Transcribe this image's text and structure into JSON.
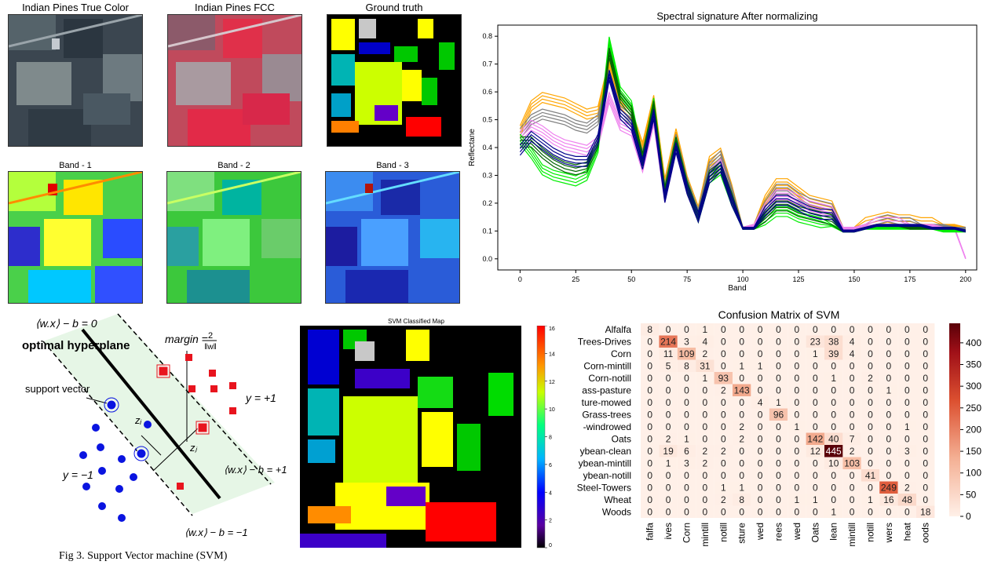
{
  "panels": {
    "true_color": {
      "title": "Indian Pines True Color"
    },
    "fcc": {
      "title": "Indian Pines FCC"
    },
    "ground_truth": {
      "title": "Ground truth"
    },
    "band1": {
      "title": "Band - 1"
    },
    "band2": {
      "title": "Band - 2"
    },
    "band3": {
      "title": "Band - 3"
    },
    "svm_map": {
      "title": "SVM Classified Map",
      "colorbar_ticks": [
        0,
        2,
        4,
        6,
        8,
        10,
        12,
        14,
        16
      ]
    }
  },
  "svm_diagram": {
    "eq_top": "⟨w.x⟩ − b = 0",
    "optimal": "optimal hyperplane",
    "margin": "margin =",
    "margin_num": "2",
    "margin_den": "‖w‖",
    "support_vector": "support vector",
    "y_pos": "y = +1",
    "y_neg": "y = −1",
    "zi": "zᵢ",
    "zj": "zⱼ",
    "eq_plus": "⟨w.x⟩ − b = +1",
    "eq_minus": "⟨w.x⟩ − b = −1",
    "caption": "Fig 3. Support Vector machine (SVM)"
  },
  "chart_data": [
    {
      "type": "line",
      "title": "Spectral signature After normalizing",
      "xlabel": "Band",
      "ylabel": "Reflectane",
      "xlim": [
        -10,
        205
      ],
      "ylim": [
        -0.04,
        0.84
      ],
      "xticks": [
        0,
        25,
        50,
        75,
        100,
        125,
        150,
        175,
        200
      ],
      "yticks": [
        0.0,
        0.1,
        0.2,
        0.3,
        0.4,
        0.5,
        0.6,
        0.7,
        0.8
      ],
      "grid": false,
      "series": [
        {
          "color": "#ffa500",
          "x": [
            0,
            5,
            10,
            15,
            20,
            25,
            30,
            35,
            40,
            45,
            50,
            55,
            60,
            65,
            70,
            75,
            80,
            85,
            90,
            95,
            100,
            105,
            110,
            115,
            120,
            125,
            130,
            135,
            140,
            145,
            150,
            155,
            160,
            165,
            170,
            175,
            180,
            185,
            190,
            195,
            200
          ],
          "values": [
            0.46,
            0.55,
            0.58,
            0.57,
            0.56,
            0.54,
            0.52,
            0.53,
            0.7,
            0.56,
            0.52,
            0.4,
            0.57,
            0.27,
            0.45,
            0.28,
            0.17,
            0.35,
            0.38,
            0.25,
            0.11,
            0.12,
            0.21,
            0.27,
            0.27,
            0.24,
            0.21,
            0.2,
            0.19,
            0.11,
            0.11,
            0.13,
            0.14,
            0.15,
            0.14,
            0.14,
            0.13,
            0.13,
            0.12,
            0.12,
            0.11
          ]
        },
        {
          "color": "#808080",
          "x": [
            0,
            5,
            10,
            15,
            20,
            25,
            30,
            35,
            40,
            45,
            50,
            55,
            60,
            65,
            70,
            75,
            80,
            85,
            90,
            95,
            100,
            105,
            110,
            115,
            120,
            125,
            130,
            135,
            140,
            145,
            150,
            155,
            160,
            165,
            170,
            175,
            180,
            185,
            190,
            195,
            200
          ],
          "values": [
            0.45,
            0.5,
            0.52,
            0.51,
            0.5,
            0.48,
            0.47,
            0.5,
            0.66,
            0.53,
            0.5,
            0.37,
            0.54,
            0.25,
            0.43,
            0.27,
            0.16,
            0.33,
            0.37,
            0.24,
            0.11,
            0.12,
            0.19,
            0.25,
            0.25,
            0.22,
            0.2,
            0.19,
            0.18,
            0.11,
            0.11,
            0.12,
            0.13,
            0.14,
            0.13,
            0.13,
            0.12,
            0.12,
            0.12,
            0.11,
            0.11
          ]
        },
        {
          "color": "#ee82ee",
          "x": [
            0,
            5,
            10,
            15,
            20,
            25,
            30,
            35,
            40,
            45,
            50,
            55,
            60,
            65,
            70,
            75,
            80,
            85,
            90,
            95,
            100,
            105,
            110,
            115,
            120,
            125,
            130,
            135,
            140,
            145,
            150,
            155,
            160,
            165,
            170,
            175,
            180,
            185,
            190,
            195,
            200
          ],
          "values": [
            0.44,
            0.48,
            0.46,
            0.43,
            0.41,
            0.4,
            0.39,
            0.42,
            0.58,
            0.48,
            0.46,
            0.33,
            0.5,
            0.22,
            0.4,
            0.25,
            0.15,
            0.3,
            0.34,
            0.22,
            0.11,
            0.12,
            0.18,
            0.23,
            0.23,
            0.21,
            0.19,
            0.18,
            0.17,
            0.11,
            0.11,
            0.12,
            0.13,
            0.13,
            0.13,
            0.12,
            0.12,
            0.12,
            0.11,
            0.11,
            0.0
          ]
        },
        {
          "color": "#00ee00",
          "x": [
            0,
            5,
            10,
            15,
            20,
            25,
            30,
            35,
            40,
            45,
            50,
            55,
            60,
            65,
            70,
            75,
            80,
            85,
            90,
            95,
            100,
            105,
            110,
            115,
            120,
            125,
            130,
            135,
            140,
            145,
            150,
            155,
            160,
            165,
            170,
            175,
            180,
            185,
            190,
            195,
            200
          ],
          "values": [
            0.43,
            0.38,
            0.32,
            0.3,
            0.29,
            0.28,
            0.3,
            0.4,
            0.78,
            0.6,
            0.55,
            0.35,
            0.56,
            0.24,
            0.42,
            0.26,
            0.15,
            0.29,
            0.32,
            0.21,
            0.11,
            0.11,
            0.14,
            0.17,
            0.17,
            0.15,
            0.14,
            0.13,
            0.12,
            0.1,
            0.1,
            0.11,
            0.11,
            0.11,
            0.11,
            0.11,
            0.11,
            0.11,
            0.1,
            0.1,
            0.1
          ]
        },
        {
          "color": "#006400",
          "x": [
            0,
            5,
            10,
            15,
            20,
            25,
            30,
            35,
            40,
            45,
            50,
            55,
            60,
            65,
            70,
            75,
            80,
            85,
            90,
            95,
            100,
            105,
            110,
            115,
            120,
            125,
            130,
            135,
            140,
            145,
            150,
            155,
            160,
            165,
            170,
            175,
            180,
            185,
            190,
            195,
            200
          ],
          "values": [
            0.42,
            0.42,
            0.38,
            0.35,
            0.33,
            0.32,
            0.33,
            0.42,
            0.74,
            0.58,
            0.53,
            0.36,
            0.55,
            0.24,
            0.42,
            0.26,
            0.15,
            0.3,
            0.33,
            0.22,
            0.11,
            0.11,
            0.15,
            0.19,
            0.19,
            0.17,
            0.16,
            0.15,
            0.14,
            0.1,
            0.1,
            0.11,
            0.12,
            0.12,
            0.12,
            0.11,
            0.11,
            0.11,
            0.11,
            0.11,
            0.1
          ]
        },
        {
          "color": "#00008b",
          "x": [
            0,
            5,
            10,
            15,
            20,
            25,
            30,
            35,
            40,
            45,
            50,
            55,
            60,
            65,
            70,
            75,
            80,
            85,
            90,
            95,
            100,
            105,
            110,
            115,
            120,
            125,
            130,
            135,
            140,
            145,
            150,
            155,
            160,
            165,
            170,
            175,
            180,
            185,
            190,
            195,
            200
          ],
          "values": [
            0.39,
            0.44,
            0.41,
            0.38,
            0.36,
            0.35,
            0.35,
            0.43,
            0.66,
            0.52,
            0.48,
            0.34,
            0.52,
            0.22,
            0.4,
            0.25,
            0.15,
            0.29,
            0.33,
            0.21,
            0.11,
            0.11,
            0.17,
            0.21,
            0.21,
            0.19,
            0.17,
            0.16,
            0.16,
            0.1,
            0.1,
            0.11,
            0.12,
            0.12,
            0.12,
            0.12,
            0.12,
            0.11,
            0.11,
            0.11,
            0.1
          ]
        }
      ]
    },
    {
      "type": "heatmap",
      "title": "Confusion Matrix of SVM",
      "row_labels": [
        "Alfalfa",
        "Trees-Drives",
        "Corn",
        "Corn-mintill",
        "Corn-notill",
        "ass-pasture",
        "ture-mowed",
        "Grass-trees",
        "-windrowed",
        "Oats",
        "ybean-clean",
        "ybean-mintill",
        "ybean-notill",
        "Steel-Towers",
        "Wheat",
        "Woods"
      ],
      "col_labels": [
        "falfa",
        "ives",
        "Corn",
        "mintill",
        "notill",
        "sture",
        "wed",
        "rees",
        "wed",
        "Oats",
        "lean",
        "mintill",
        "notill",
        "wers",
        "heat",
        "oods"
      ],
      "matrix": [
        [
          8,
          0,
          0,
          1,
          0,
          0,
          0,
          0,
          0,
          0,
          0,
          0,
          0,
          0,
          0,
          0
        ],
        [
          0,
          214,
          3,
          4,
          0,
          0,
          0,
          0,
          0,
          23,
          38,
          4,
          0,
          0,
          0,
          0
        ],
        [
          0,
          11,
          109,
          2,
          0,
          0,
          0,
          0,
          0,
          1,
          39,
          4,
          0,
          0,
          0,
          0
        ],
        [
          0,
          5,
          8,
          31,
          0,
          1,
          1,
          0,
          0,
          0,
          0,
          0,
          0,
          0,
          0,
          0
        ],
        [
          0,
          0,
          0,
          1,
          93,
          0,
          0,
          0,
          0,
          0,
          1,
          0,
          2,
          0,
          0,
          0
        ],
        [
          0,
          0,
          0,
          0,
          2,
          143,
          0,
          0,
          0,
          0,
          0,
          0,
          0,
          1,
          0,
          0
        ],
        [
          0,
          0,
          0,
          0,
          0,
          0,
          4,
          1,
          0,
          0,
          0,
          0,
          0,
          0,
          0,
          0
        ],
        [
          0,
          0,
          0,
          0,
          0,
          0,
          0,
          96,
          0,
          0,
          0,
          0,
          0,
          0,
          0,
          0
        ],
        [
          0,
          0,
          0,
          0,
          0,
          2,
          0,
          0,
          1,
          0,
          0,
          0,
          0,
          0,
          1,
          0
        ],
        [
          0,
          2,
          1,
          0,
          0,
          2,
          0,
          0,
          0,
          142,
          40,
          7,
          0,
          0,
          0,
          0
        ],
        [
          0,
          19,
          6,
          2,
          2,
          0,
          0,
          0,
          0,
          12,
          445,
          2,
          0,
          0,
          3,
          0
        ],
        [
          0,
          1,
          3,
          2,
          0,
          0,
          0,
          0,
          0,
          0,
          10,
          103,
          0,
          0,
          0,
          0
        ],
        [
          0,
          0,
          0,
          0,
          0,
          0,
          0,
          0,
          0,
          0,
          0,
          0,
          41,
          0,
          0,
          0
        ],
        [
          0,
          0,
          0,
          0,
          1,
          1,
          0,
          0,
          0,
          0,
          0,
          0,
          0,
          249,
          2,
          0
        ],
        [
          0,
          0,
          0,
          0,
          2,
          8,
          0,
          0,
          1,
          1,
          0,
          0,
          1,
          16,
          48,
          0
        ],
        [
          0,
          0,
          0,
          0,
          0,
          0,
          0,
          0,
          0,
          0,
          1,
          0,
          0,
          0,
          0,
          18
        ]
      ],
      "vmin": 0,
      "vmax": 445,
      "colorbar_ticks": [
        0,
        50,
        100,
        150,
        200,
        250,
        300,
        350,
        400
      ]
    }
  ]
}
